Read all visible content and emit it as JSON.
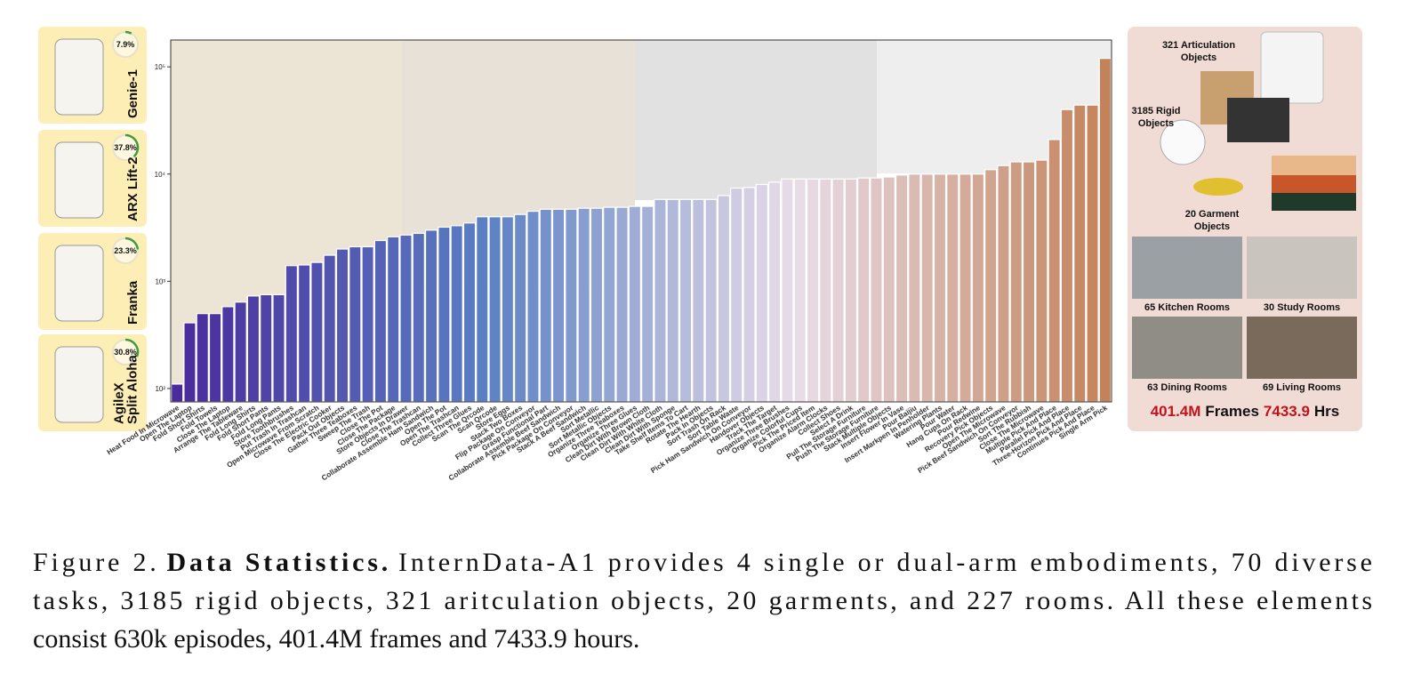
{
  "chart_data": {
    "type": "bar",
    "log_scale": true,
    "ylim": [
      75,
      178000
    ],
    "yticks": [
      {
        "value": 100,
        "label": "10²"
      },
      {
        "value": 1000,
        "label": "10³"
      },
      {
        "value": 10000,
        "label": "10⁴"
      },
      {
        "value": 100000,
        "label": "10⁵"
      }
    ],
    "colormap": [
      "#4a2a9c",
      "#5b80c4",
      "#e9dde9",
      "#c3825a"
    ],
    "categories": [
      "Heat Food In Microwave",
      "Open The Laptop",
      "Fold Short Shirts",
      "Fold Towels",
      "Close The Laptop",
      "Arrange The Tableware",
      "Fold Long Shirts",
      "Fold Short Pants",
      "Fold Long Pants",
      "Store Toothbrushes",
      "Put Trash In Trashcan",
      "Open Microwave From Scratch",
      "Close The Electric Cooker",
      "Pack Out Objects",
      "Gather Three Teaboxes",
      "Sweep The Trash",
      "Close The Pot",
      "Close The Package",
      "Store Objects In Drawer",
      "Close The Trashcan",
      "Collaborate Assemble Ham Sandwich",
      "Open The Pot",
      "Open The Trashcan",
      "Collect Three Glues",
      "Scan The Qrcode",
      "Scan Qrcode",
      "Store Eggs",
      "Stack Two Boxes",
      "Flip Package On Conveyor",
      "Grasp Functional Part",
      "Collaborate Assemble Beef Sandwich",
      "Pick Package On Conveyor",
      "Stack A Beef Sandwich",
      "Sort Metallic",
      "Sort Metallic Objects",
      "Organize Three Teaboxes",
      "Organize Three Glues",
      "Clean Dirt With Brown Cloth",
      "Clean Dirt With White Cloth",
      "Clean Dirt With Sponge",
      "Take Shelf Items To Cart",
      "Rotate The Hearth",
      "Pack In Objects",
      "Sort Trash On Rack",
      "Sort Table Waste",
      "Pick Ham Sandwich On Conveyor",
      "Handover Objects",
      "Track The Target",
      "Organize Three Brushes",
      "Organize Colorful Cups",
      "Pick The Priced Item",
      "Organize Alarm Clocks",
      "Collect Shoes",
      "Select A Drink",
      "Pull The Storage Furniture",
      "Push The Storage Furniture",
      "Stack Multiple Objects",
      "Insert Flower In Vase",
      "Pour Baijiu",
      "Insert Markpen In Penholder",
      "Watering Plants",
      "Pour Water",
      "Hang Cups On Rack",
      "Pour Redwine",
      "Recovery Pick Objects",
      "Open The Microwave",
      "Pick Beef Sandwich On Conveyor",
      "Sort The Rubbish",
      "Close The Microwave",
      "Multiple Pick And Place",
      "Parallel Pick And Place",
      "Three-Horizon Pick And Place",
      "Continues Pick And Place",
      "Single Arm Pick"
    ],
    "values": [
      110,
      410,
      500,
      500,
      580,
      640,
      730,
      750,
      750,
      1400,
      1420,
      1500,
      1750,
      2000,
      2100,
      2100,
      2400,
      2600,
      2700,
      2800,
      3000,
      3200,
      3300,
      3500,
      4000,
      4000,
      4000,
      4200,
      4500,
      4700,
      4700,
      4700,
      4800,
      4800,
      4900,
      4900,
      5000,
      5000,
      5800,
      5800,
      5800,
      5800,
      5800,
      6300,
      7400,
      7500,
      8000,
      8400,
      9000,
      9000,
      9000,
      9000,
      9000,
      9000,
      9200,
      9200,
      9400,
      9800,
      10000,
      10000,
      10000,
      10000,
      10000,
      10000,
      11000,
      12000,
      13000,
      13000,
      13500,
      21000,
      40000,
      44000,
      44000,
      120000
    ]
  },
  "embodiments": [
    {
      "name": "Genie-1",
      "share": 7.9,
      "share_label": "7.9%"
    },
    {
      "name": "ARX Lift-2",
      "share": 37.8,
      "share_label": "37.8%"
    },
    {
      "name": "Franka",
      "share": 23.3,
      "share_label": "23.3%"
    },
    {
      "name": [
        "AgileX",
        "Split Aloha"
      ],
      "share": 30.8,
      "share_label": "30.8%"
    }
  ],
  "assets": {
    "articulation": [
      "321 Articulation",
      "Objects"
    ],
    "rigid": [
      "3185 Rigid",
      "Objects"
    ],
    "garment": [
      "20 Garment",
      "Objects"
    ],
    "rooms": [
      "65 Kitchen Rooms",
      "30 Study Rooms",
      "63 Dining Rooms",
      "69 Living Rooms"
    ],
    "frames": "401.4M",
    "frames_unit": "Frames",
    "hours": "7433.9",
    "hours_unit": "Hrs"
  },
  "caption": {
    "label": "Figure 2.",
    "bold": "Data Statistics.",
    "lines": [
      "InternData-A1 provides 4 single or dual-arm embodiments, 70 diverse",
      "tasks, 3185 rigid objects, 321 aritculation objects, 20 garments, and 227 rooms. All these elements",
      "consist 630k episodes, 401.4M frames and 7433.9 hours."
    ]
  }
}
